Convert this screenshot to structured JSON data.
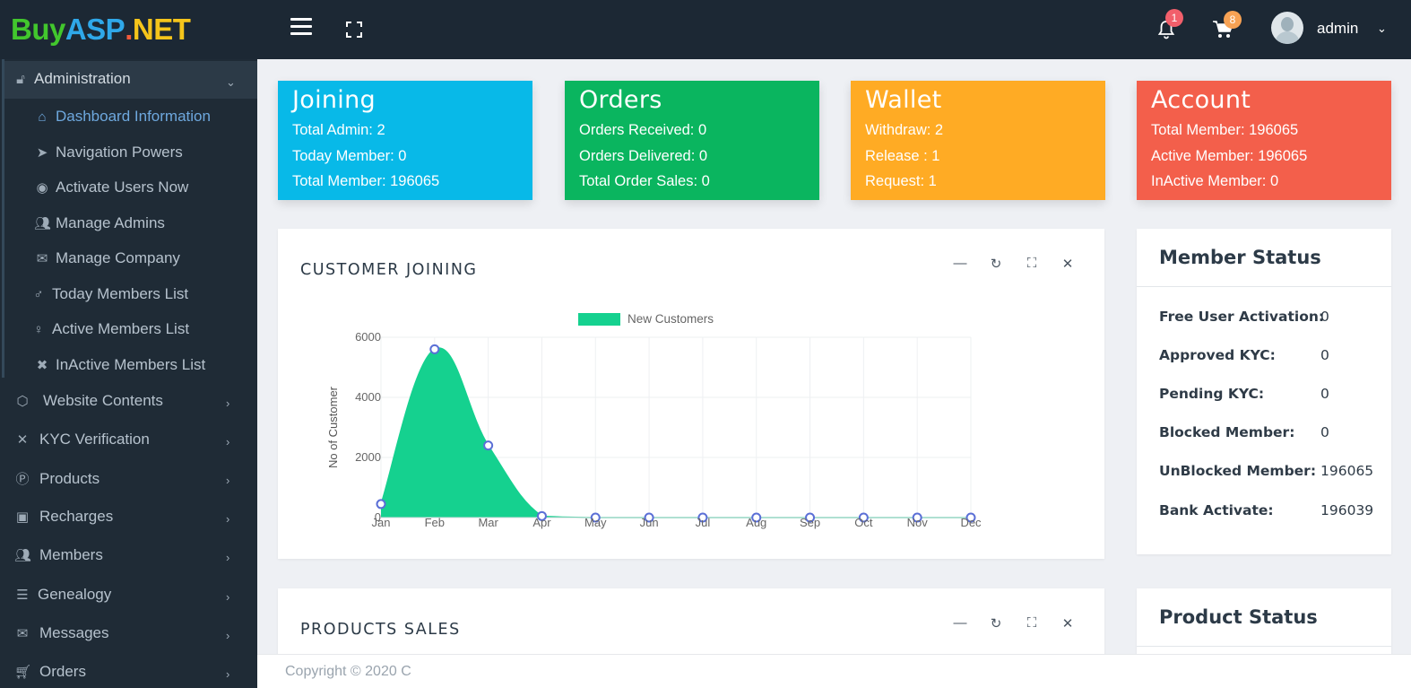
{
  "brand": {
    "parts": [
      "Buy",
      "ASP",
      ".",
      "NET"
    ],
    "colors": [
      "#42c72d",
      "#2fa8e9",
      "#f25a3b",
      "#f5c51b"
    ]
  },
  "topbar": {
    "notifications_count": "1",
    "cart_count": "8",
    "user": "admin"
  },
  "sidebar": {
    "section": "Administration",
    "sub_items": [
      {
        "label": "Dashboard Information",
        "icon": "home-icon",
        "active": true
      },
      {
        "label": "Navigation Powers",
        "icon": "location-arrow-icon"
      },
      {
        "label": "Activate Users Now",
        "icon": "user-circle-icon"
      },
      {
        "label": "Manage Admins",
        "icon": "users-icon"
      },
      {
        "label": "Manage Company",
        "icon": "envelope-icon"
      },
      {
        "label": "Today Members List",
        "icon": "male-icon"
      },
      {
        "label": "Active Members List",
        "icon": "female-icon"
      },
      {
        "label": "InActive Members List",
        "icon": "user-times-icon"
      }
    ],
    "items": [
      {
        "label": "Website Contents",
        "icon": "hexagon-icon"
      },
      {
        "label": "KYC Verification",
        "icon": "crossed-icon"
      },
      {
        "label": "Products",
        "icon": "product-p-icon"
      },
      {
        "label": "Recharges",
        "icon": "money-icon"
      },
      {
        "label": "Members",
        "icon": "users-icon"
      },
      {
        "label": "Genealogy",
        "icon": "tree-icon"
      },
      {
        "label": "Messages",
        "icon": "envelope-icon"
      },
      {
        "label": "Orders",
        "icon": "cart-icon"
      }
    ]
  },
  "cards": [
    {
      "title": "Joining",
      "rows": [
        "Total Admin: 2",
        "Today Member: 0",
        "Total Member: 196065"
      ]
    },
    {
      "title": "Orders",
      "rows": [
        "Orders Received: 0",
        "Orders Delivered: 0",
        "Total Order Sales: 0"
      ]
    },
    {
      "title": "Wallet",
      "rows": [
        "Withdraw: 2",
        "Release : 1",
        "Request: 1"
      ]
    },
    {
      "title": "Account",
      "rows": [
        "Total Member: 196065",
        "Active Member: 196065",
        "InActive Member: 0"
      ]
    }
  ],
  "chart_panel": {
    "title": "CUSTOMER JOINING"
  },
  "chart_data": {
    "type": "area",
    "categories": [
      "Jan",
      "Feb",
      "Mar",
      "Apr",
      "May",
      "Jun",
      "Jul",
      "Aug",
      "Sep",
      "Oct",
      "Nov",
      "Dec"
    ],
    "series": [
      {
        "name": "New Customers",
        "values": [
          450,
          5600,
          2400,
          50,
          0,
          0,
          0,
          0,
          0,
          0,
          0,
          0
        ]
      }
    ],
    "ylabel": "No of Customer",
    "xlabel": "",
    "ylim": [
      0,
      6000
    ],
    "yticks": [
      "0",
      "2000",
      "4000",
      "6000"
    ],
    "colors": {
      "fill": "#15d18f",
      "point": "#5b6fd6"
    },
    "legend": "top"
  },
  "sales_panel": {
    "title": "PRODUCTS SALES"
  },
  "member_status": {
    "title": "Member Status",
    "rows": [
      {
        "label": "Free User Activation:",
        "value": "0"
      },
      {
        "label": "Approved KYC:",
        "value": "0"
      },
      {
        "label": "Pending KYC:",
        "value": "0"
      },
      {
        "label": "Blocked Member:",
        "value": "0"
      },
      {
        "label": "UnBlocked Member:",
        "value": "196065"
      },
      {
        "label": "Bank Activate:",
        "value": "196039"
      }
    ]
  },
  "product_status": {
    "title": "Product Status"
  },
  "footer": {
    "text": "Copyright © 2020 C"
  }
}
